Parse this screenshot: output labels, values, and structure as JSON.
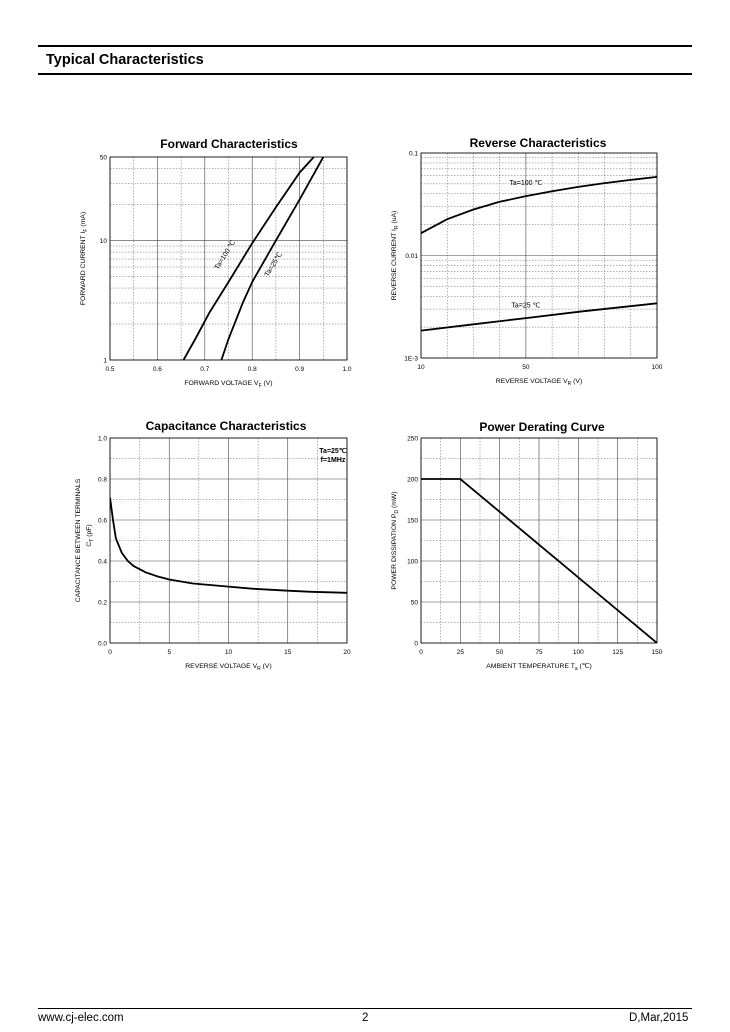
{
  "header": {
    "section_title": "Typical Characteristics"
  },
  "footer": {
    "website": "www.cj-elec.com",
    "page_number": "2",
    "date": "D,Mar,2015"
  },
  "chart_data": [
    {
      "id": "forward",
      "type": "line",
      "title": "Forward    Characteristics",
      "xlabel": "FORWARD VOLTAGE   V",
      "xlabel_sub": "F",
      "xlabel_unit": "(V)",
      "ylabel": "FORWARD CURRENT   I",
      "ylabel_sub": "F",
      "ylabel_unit": "(mA)",
      "xlim": [
        0.5,
        1.0
      ],
      "ylim": [
        1,
        50
      ],
      "yscale": "log",
      "xticks": [
        0.5,
        0.6,
        0.7,
        0.8,
        0.9,
        1.0
      ],
      "xtick_labels": [
        "0.5",
        "0.6",
        "0.7",
        "0.8",
        "0.9",
        "1.0"
      ],
      "yticks": [
        1,
        10,
        50
      ],
      "ytick_labels": [
        "1",
        "10",
        "50"
      ],
      "grid": true,
      "series": [
        {
          "name": "Ta=100 ℃",
          "x": [
            0.655,
            0.68,
            0.71,
            0.75,
            0.8,
            0.85,
            0.9,
            0.93
          ],
          "y": [
            1.0,
            1.5,
            2.5,
            4.5,
            9.5,
            19,
            37,
            50
          ]
        },
        {
          "name": "Ta=25℃",
          "x": [
            0.735,
            0.75,
            0.78,
            0.8,
            0.85,
            0.9,
            0.95
          ],
          "y": [
            1.0,
            1.5,
            3.0,
            4.5,
            10,
            22,
            50
          ]
        }
      ],
      "annotations": [
        "Ta=100 ℃",
        "Ta=25℃"
      ]
    },
    {
      "id": "reverse",
      "type": "line",
      "title": "Reverse    Characteristics",
      "xlabel": "REVERSE VOLTAGE   V",
      "xlabel_sub": "R",
      "xlabel_unit": "(V)",
      "ylabel": "REVERSE CURRENT   I",
      "ylabel_sub": "R",
      "ylabel_unit": "(uA)",
      "xlim": [
        10,
        100
      ],
      "ylim": [
        0.001,
        0.1
      ],
      "yscale": "log",
      "xticks": [
        10,
        50,
        100
      ],
      "xtick_labels": [
        "10",
        "50",
        "100"
      ],
      "yticks": [
        0.001,
        0.01,
        0.1
      ],
      "ytick_labels": [
        "1E-3",
        "0.01",
        "0.1"
      ],
      "grid": true,
      "series": [
        {
          "name": "Ta=100 ℃",
          "x": [
            10,
            20,
            30,
            40,
            50,
            60,
            70,
            80,
            90,
            100
          ],
          "y": [
            0.0165,
            0.0226,
            0.0281,
            0.0334,
            0.038,
            0.0424,
            0.0467,
            0.0508,
            0.0547,
            0.0585
          ]
        },
        {
          "name": "Ta=25 ℃",
          "x": [
            10,
            30,
            50,
            70,
            100
          ],
          "y": [
            0.00185,
            0.00213,
            0.00245,
            0.00282,
            0.00342
          ]
        }
      ],
      "annotations": [
        "Ta=100 ℃",
        "Ta=25 ℃"
      ]
    },
    {
      "id": "capacitance",
      "type": "line",
      "title": "Capacitance Characteristics",
      "xlabel": "REVERSE VOLTAGE   V",
      "xlabel_sub": "R",
      "xlabel_unit": "(V)",
      "ylabel": "CAPACITANCE BETWEEN TERMINALS",
      "ylabel2": "C",
      "ylabel2_sub": "T",
      "ylabel2_unit": "(pF)",
      "xlim": [
        0,
        20
      ],
      "ylim": [
        0.0,
        1.0
      ],
      "xticks": [
        0,
        5,
        10,
        15,
        20
      ],
      "xtick_labels": [
        "0",
        "5",
        "10",
        "15",
        "20"
      ],
      "yticks": [
        0.0,
        0.2,
        0.4,
        0.6,
        0.8,
        1.0
      ],
      "ytick_labels": [
        "0.0",
        "0.2",
        "0.4",
        "0.6",
        "0.8",
        "1.0"
      ],
      "grid": true,
      "series": [
        {
          "name": "",
          "x": [
            0,
            0.25,
            0.5,
            1,
            1.5,
            2,
            3,
            4,
            5,
            7,
            10,
            12,
            15,
            17,
            20
          ],
          "y": [
            0.71,
            0.6,
            0.51,
            0.44,
            0.4,
            0.375,
            0.345,
            0.325,
            0.31,
            0.29,
            0.275,
            0.265,
            0.255,
            0.25,
            0.245
          ]
        }
      ],
      "annotations": [
        "Ta=25℃",
        "f=1MHz"
      ]
    },
    {
      "id": "power",
      "type": "line",
      "title": "Power Derating Curve",
      "xlabel": "AMBIENT TEMPERATURE   T",
      "xlabel_sub": "a",
      "xlabel_unit": "(℃)",
      "ylabel": "POWER DISSIPATION   P",
      "ylabel_sub": "D",
      "ylabel_unit": "(mW)",
      "xlim": [
        0,
        150
      ],
      "ylim": [
        0,
        250
      ],
      "xticks": [
        0,
        25,
        50,
        75,
        100,
        125,
        150
      ],
      "xtick_labels": [
        "0",
        "25",
        "50",
        "75",
        "100",
        "125",
        "150"
      ],
      "yticks": [
        0,
        50,
        100,
        150,
        200,
        250
      ],
      "ytick_labels": [
        "0",
        "50",
        "100",
        "150",
        "200",
        "250"
      ],
      "grid": true,
      "series": [
        {
          "name": "",
          "x": [
            0,
            25,
            150
          ],
          "y": [
            200,
            200,
            0
          ]
        }
      ]
    }
  ]
}
